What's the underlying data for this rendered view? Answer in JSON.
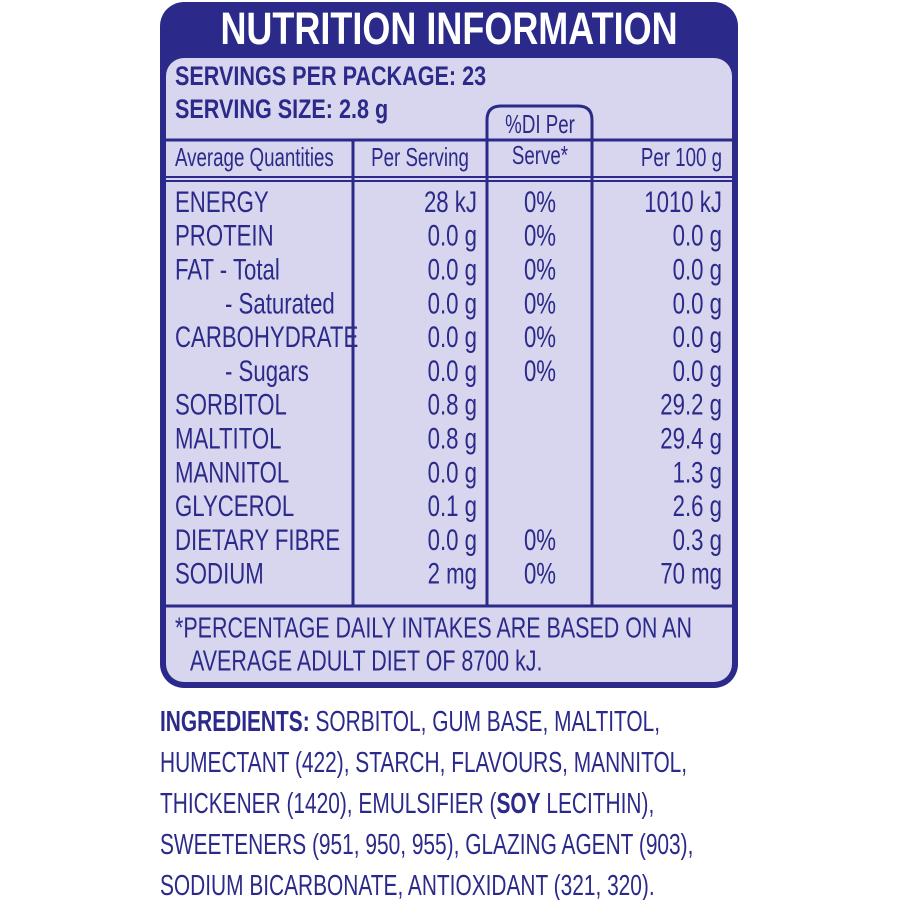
{
  "header": {
    "title": "NUTRITION INFORMATION",
    "servings_per_package": "SERVINGS PER PACKAGE: 23",
    "serving_size": "SERVING SIZE: 2.8 g"
  },
  "table": {
    "columns": [
      "Average Quantities",
      "Per Serving",
      [
        "%DI Per",
        "Serve*"
      ],
      "Per 100 g"
    ],
    "rows": [
      [
        "ENERGY",
        "28 kJ",
        "0%",
        "1010 kJ"
      ],
      [
        "PROTEIN",
        "0.0 g",
        "0%",
        "0.0 g"
      ],
      [
        "FAT  - Total",
        "0.0 g",
        "0%",
        "0.0 g"
      ],
      [
        "- Saturated",
        "0.0 g",
        "0%",
        "0.0 g"
      ],
      [
        "CARBOHYDRATE",
        "0.0 g",
        "0%",
        "0.0 g"
      ],
      [
        "- Sugars",
        "0.0 g",
        "0%",
        "0.0 g"
      ],
      [
        "SORBITOL",
        "0.8 g",
        null,
        "29.2 g"
      ],
      [
        "MALTITOL",
        "0.8 g",
        null,
        "29.4 g"
      ],
      [
        "MANNITOL",
        "0.0 g",
        null,
        "1.3 g"
      ],
      [
        "GLYCEROL",
        "0.1 g",
        null,
        "2.6 g"
      ],
      [
        "DIETARY FIBRE",
        "0.0 g",
        "0%",
        "0.3 g"
      ],
      [
        "SODIUM",
        "2 mg",
        "0%",
        "70 mg"
      ]
    ]
  },
  "footnote": [
    "*PERCENTAGE DAILY INTAKES ARE BASED ON AN",
    "AVERAGE ADULT DIET OF 8700 kJ."
  ],
  "ingredients": {
    "label": "INGREDIENTS:",
    "text": [
      " SORBITOL, GUM BASE, MALTITOL, HUMECTANT (422), STARCH, FLAVOURS, MANNITOL, THICKENER (1420), EMULSIFIER (",
      "SOY",
      " LECITHIN), SWEETENERS (951, 950, 955), GLAZING AGENT (903), SODIUM BICARBONATE, ANTIOXIDANT (321, 320)."
    ]
  }
}
